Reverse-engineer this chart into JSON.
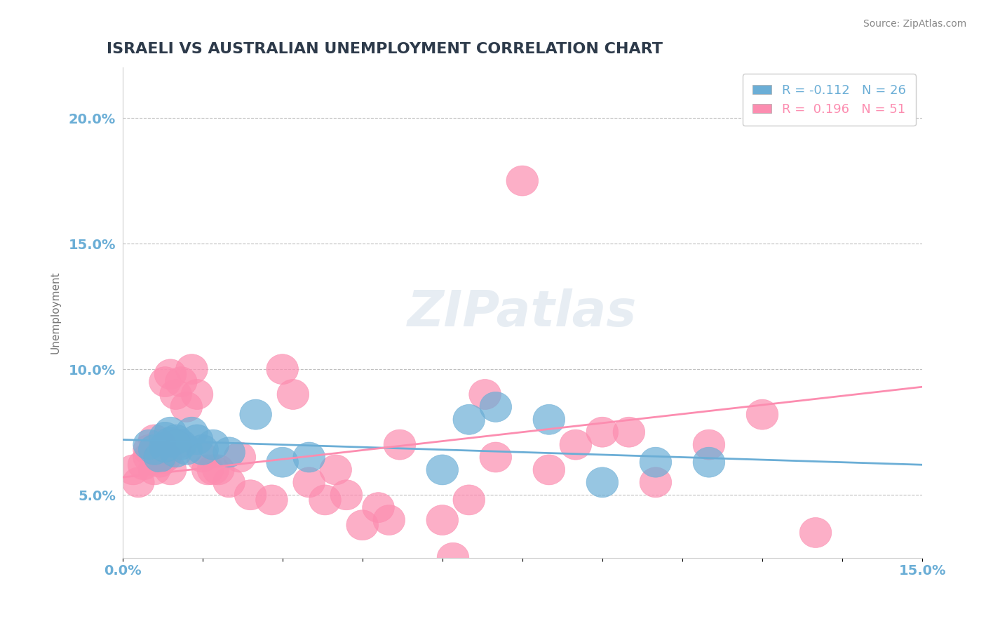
{
  "title": "ISRAELI VS AUSTRALIAN UNEMPLOYMENT CORRELATION CHART",
  "source": "Source: ZipAtlas.com",
  "xlabel": "",
  "ylabel": "Unemployment",
  "xlim": [
    0.0,
    0.15
  ],
  "ylim": [
    0.025,
    0.22
  ],
  "xticks": [
    0.0,
    0.015,
    0.03,
    0.045,
    0.06,
    0.075,
    0.09,
    0.105,
    0.12,
    0.135,
    0.15
  ],
  "xtick_labels": [
    "0.0%",
    "",
    "",
    "",
    "",
    "",
    "",
    "",
    "",
    "",
    "15.0%"
  ],
  "ytick_positions": [
    0.05,
    0.1,
    0.15,
    0.2
  ],
  "ytick_labels": [
    "5.0%",
    "10.0%",
    "15.0%",
    "20.0%"
  ],
  "legend_r_israeli": "-0.112",
  "legend_n_israeli": "26",
  "legend_r_australian": "0.196",
  "legend_n_australian": "51",
  "israeli_color": "#6baed6",
  "australian_color": "#fc8db0",
  "israeli_line_color": "#6baed6",
  "australian_line_color": "#fc8db0",
  "title_color": "#2d3a4a",
  "axis_color": "#6baed6",
  "background_color": "#ffffff",
  "grid_color": "#c0c0c0",
  "watermark_text": "ZIPatlas",
  "israelis_x": [
    0.005,
    0.006,
    0.007,
    0.008,
    0.008,
    0.009,
    0.009,
    0.01,
    0.01,
    0.011,
    0.012,
    0.013,
    0.014,
    0.015,
    0.017,
    0.02,
    0.025,
    0.03,
    0.035,
    0.06,
    0.065,
    0.07,
    0.08,
    0.09,
    0.1,
    0.11
  ],
  "israelis_y": [
    0.07,
    0.068,
    0.065,
    0.073,
    0.069,
    0.071,
    0.075,
    0.067,
    0.072,
    0.07,
    0.068,
    0.075,
    0.072,
    0.068,
    0.07,
    0.067,
    0.082,
    0.063,
    0.065,
    0.06,
    0.08,
    0.085,
    0.08,
    0.055,
    0.063,
    0.063
  ],
  "australians_x": [
    0.002,
    0.003,
    0.004,
    0.005,
    0.005,
    0.006,
    0.006,
    0.007,
    0.007,
    0.008,
    0.008,
    0.009,
    0.009,
    0.01,
    0.01,
    0.011,
    0.012,
    0.013,
    0.014,
    0.015,
    0.016,
    0.017,
    0.018,
    0.02,
    0.022,
    0.024,
    0.028,
    0.03,
    0.032,
    0.035,
    0.038,
    0.04,
    0.042,
    0.045,
    0.048,
    0.05,
    0.052,
    0.06,
    0.062,
    0.065,
    0.068,
    0.07,
    0.075,
    0.08,
    0.085,
    0.09,
    0.095,
    0.1,
    0.11,
    0.12,
    0.13
  ],
  "australians_y": [
    0.06,
    0.055,
    0.062,
    0.065,
    0.068,
    0.06,
    0.072,
    0.063,
    0.07,
    0.065,
    0.095,
    0.06,
    0.098,
    0.07,
    0.09,
    0.095,
    0.085,
    0.1,
    0.09,
    0.065,
    0.06,
    0.06,
    0.06,
    0.055,
    0.065,
    0.05,
    0.048,
    0.1,
    0.09,
    0.055,
    0.048,
    0.06,
    0.05,
    0.038,
    0.045,
    0.04,
    0.07,
    0.04,
    0.025,
    0.048,
    0.09,
    0.065,
    0.175,
    0.06,
    0.07,
    0.075,
    0.075,
    0.055,
    0.07,
    0.082,
    0.035
  ],
  "israeli_trendline_x": [
    0.0,
    0.15
  ],
  "israeli_trendline_y": [
    0.072,
    0.062
  ],
  "australian_trendline_x": [
    0.0,
    0.15
  ],
  "australian_trendline_y": [
    0.057,
    0.093
  ]
}
